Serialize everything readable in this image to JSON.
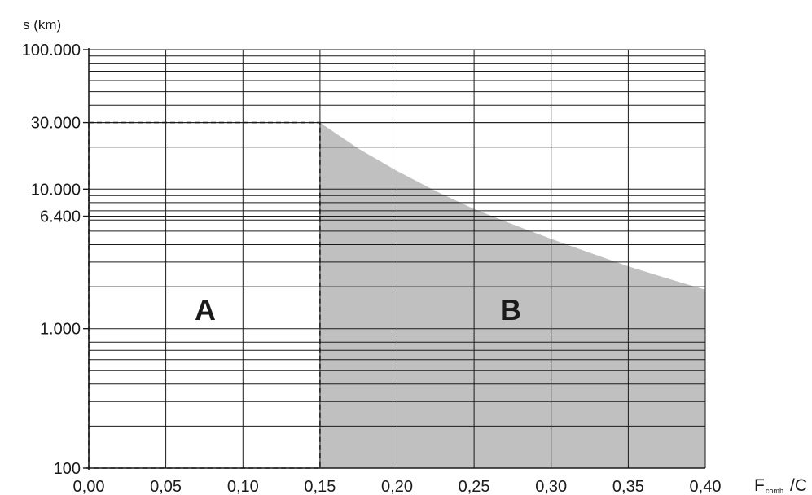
{
  "chart_data": {
    "type": "area",
    "ylabel": "s (km)",
    "xlabel_main": "F",
    "xlabel_sub": "comb",
    "xlabel_tail": "/C",
    "y_scale": "log",
    "ylim": [
      100,
      100000
    ],
    "xlim": [
      0.0,
      0.4
    ],
    "grid": true,
    "x_ticks": [
      {
        "value": 0.0,
        "label": "0,00"
      },
      {
        "value": 0.05,
        "label": "0,05"
      },
      {
        "value": 0.1,
        "label": "0,10"
      },
      {
        "value": 0.15,
        "label": "0,15"
      },
      {
        "value": 0.2,
        "label": "0,20"
      },
      {
        "value": 0.25,
        "label": "0,25"
      },
      {
        "value": 0.3,
        "label": "0,30"
      },
      {
        "value": 0.35,
        "label": "0,35"
      },
      {
        "value": 0.4,
        "label": "0,40"
      }
    ],
    "y_ticks": [
      {
        "value": 100,
        "label": "100"
      },
      {
        "value": 1000,
        "label": "1.000"
      },
      {
        "value": 6400,
        "label": "6.400"
      },
      {
        "value": 10000,
        "label": "10.000"
      },
      {
        "value": 30000,
        "label": "30.000"
      },
      {
        "value": 100000,
        "label": "100.000"
      }
    ],
    "region_a": {
      "label": "A",
      "x": [
        0.0,
        0.15
      ],
      "y": [
        100,
        30000
      ],
      "style": "dashed-rectangle"
    },
    "region_b": {
      "label": "B",
      "fill": "#c0c0c0",
      "curve": {
        "x": [
          0.15,
          0.175,
          0.2,
          0.225,
          0.25,
          0.275,
          0.3,
          0.325,
          0.35,
          0.375,
          0.4
        ],
        "y": [
          30000,
          19500,
          13500,
          9700,
          7200,
          5600,
          4400,
          3500,
          2800,
          2300,
          1900
        ]
      }
    }
  },
  "colors": {
    "grid": "#1a1a1a",
    "fill": "#c0c0c0",
    "text": "#1a1a1a"
  }
}
